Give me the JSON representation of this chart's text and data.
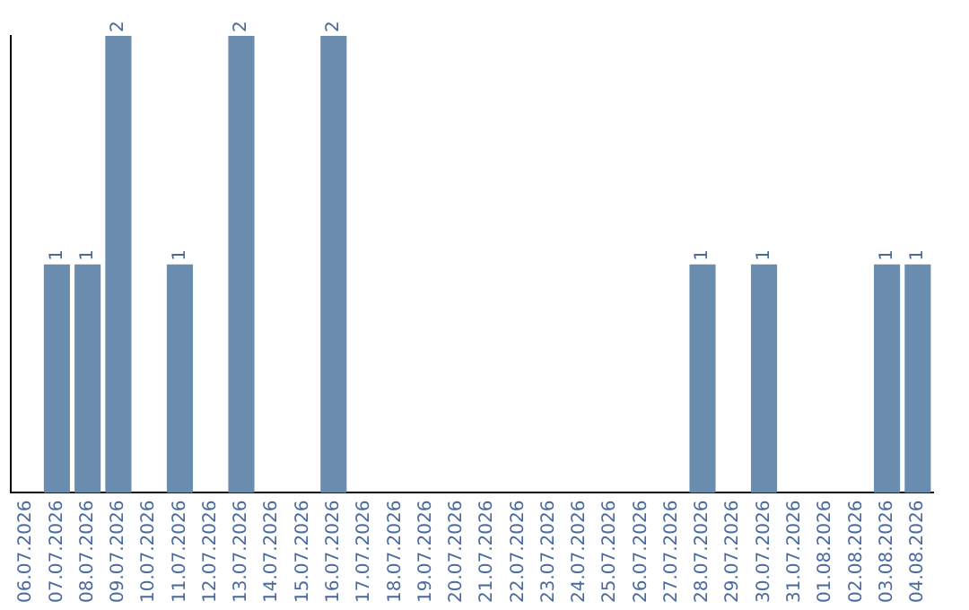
{
  "chart_data": {
    "type": "bar",
    "categories": [
      "06.07.2026",
      "07.07.2026",
      "08.07.2026",
      "09.07.2026",
      "10.07.2026",
      "11.07.2026",
      "12.07.2026",
      "13.07.2026",
      "14.07.2026",
      "15.07.2026",
      "16.07.2026",
      "17.07.2026",
      "18.07.2026",
      "19.07.2026",
      "20.07.2026",
      "21.07.2026",
      "22.07.2026",
      "23.07.2026",
      "24.07.2026",
      "25.07.2026",
      "26.07.2026",
      "27.07.2026",
      "28.07.2026",
      "29.07.2026",
      "30.07.2026",
      "31.07.2026",
      "01.08.2026",
      "02.08.2026",
      "03.08.2026",
      "04.08.2026"
    ],
    "values": [
      0,
      1,
      1,
      2,
      0,
      1,
      0,
      2,
      0,
      0,
      2,
      0,
      0,
      0,
      0,
      0,
      0,
      0,
      0,
      0,
      0,
      0,
      1,
      0,
      1,
      0,
      0,
      0,
      1,
      1
    ],
    "value_labels": [
      null,
      "1",
      "1",
      "2",
      null,
      "1",
      null,
      "2",
      null,
      null,
      "2",
      null,
      null,
      null,
      null,
      null,
      null,
      null,
      null,
      null,
      null,
      null,
      "1",
      null,
      "1",
      null,
      null,
      null,
      "1",
      "1"
    ],
    "color": "#6a8caf",
    "ylim": [
      0,
      2
    ],
    "tick_labels": "x",
    "grid": false,
    "legend": false
  }
}
